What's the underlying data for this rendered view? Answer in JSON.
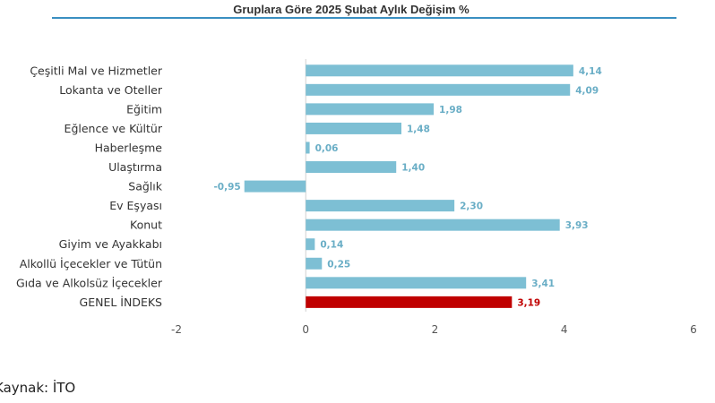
{
  "chart_data": {
    "type": "bar",
    "orientation": "horizontal",
    "title": "Gruplara Göre 2025 Şubat Aylık Değişim %",
    "categories": [
      "Çeşitli Mal ve Hizmetler",
      "Lokanta ve Oteller",
      "Eğitim",
      "Eğlence ve Kültür",
      "Haberleşme",
      "Ulaştırma",
      "Sağlık",
      "Ev Eşyası",
      "Konut",
      "Giyim ve Ayakkabı",
      "Alkollü İçecekler ve Tütün",
      "Gıda ve Alkolsüz İçecekler",
      "GENEL İNDEKS"
    ],
    "values": [
      4.14,
      4.09,
      1.98,
      1.48,
      0.06,
      1.4,
      -0.95,
      2.3,
      3.93,
      0.14,
      0.25,
      3.41,
      3.19
    ],
    "data_labels": [
      "4,14",
      "4,09",
      "1,98",
      "1,48",
      "0,06",
      "1,40",
      "-0,95",
      "2,30",
      "3,93",
      "0,14",
      "0,25",
      "3,41",
      "3,19"
    ],
    "highlight_category": "GENEL İNDEKS",
    "xlim": [
      -2,
      6
    ],
    "xticks": [
      -2,
      0,
      2,
      4,
      6
    ],
    "grid": false,
    "legend": "none",
    "colors": {
      "bar": "#7dbfd4",
      "highlight": "#c00000",
      "label": "#6aaec6",
      "highlight_label": "#c00000",
      "title_rule": "#3a8fc1",
      "axis": "#d0d0d0"
    }
  },
  "source_text": "Kaynak: İTO"
}
